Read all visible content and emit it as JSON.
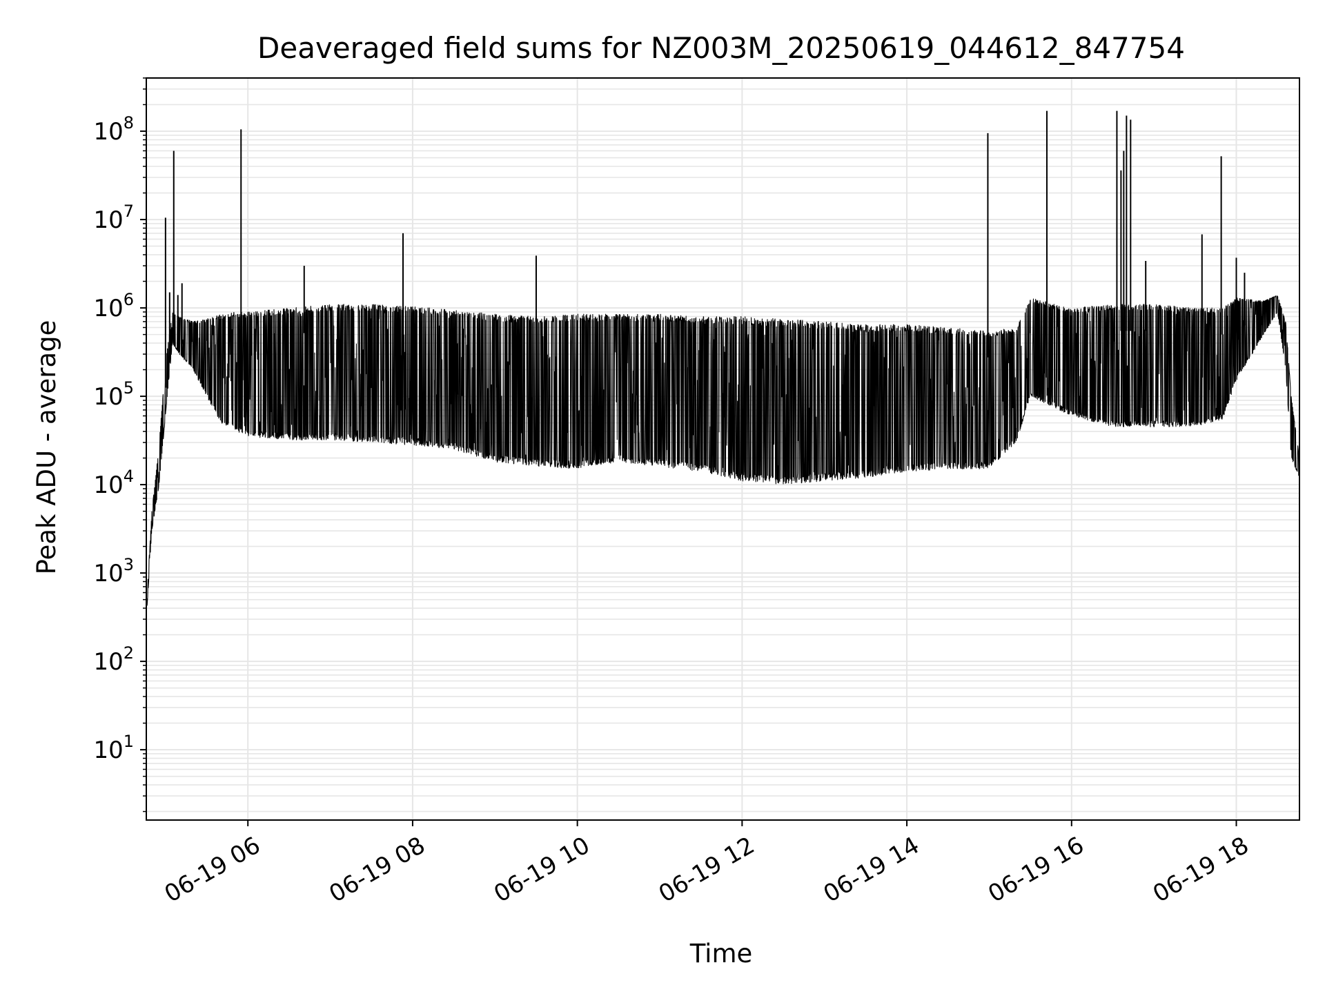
{
  "chart_data": {
    "type": "line",
    "title": "Deaveraged field sums for NZ003M_20250619_044612_847754",
    "xlabel": "Time",
    "ylabel": "Peak ADU - average",
    "y_scale": "log",
    "ylim": [
      1.6,
      400000000
    ],
    "xlim": [
      "06-19 04:46",
      "06-19 18:46"
    ],
    "grid": true,
    "line_color": "#000000",
    "grid_color": "#e6e6e6",
    "x_ticks": [
      {
        "value": "06-19 06:00",
        "label": "06-19 06"
      },
      {
        "value": "06-19 08:00",
        "label": "06-19 08"
      },
      {
        "value": "06-19 10:00",
        "label": "06-19 10"
      },
      {
        "value": "06-19 12:00",
        "label": "06-19 12"
      },
      {
        "value": "06-19 14:00",
        "label": "06-19 14"
      },
      {
        "value": "06-19 16:00",
        "label": "06-19 16"
      },
      {
        "value": "06-19 18:00",
        "label": "06-19 18"
      }
    ],
    "y_ticks": [
      {
        "value": 10,
        "base": "10",
        "exp": "1"
      },
      {
        "value": 100,
        "base": "10",
        "exp": "2"
      },
      {
        "value": 1000,
        "base": "10",
        "exp": "3"
      },
      {
        "value": 10000,
        "base": "10",
        "exp": "4"
      },
      {
        "value": 100000,
        "base": "10",
        "exp": "5"
      },
      {
        "value": 1000000,
        "base": "10",
        "exp": "6"
      },
      {
        "value": 10000000,
        "base": "10",
        "exp": "7"
      },
      {
        "value": 100000000,
        "base": "10",
        "exp": "8"
      }
    ],
    "envelope": {
      "x": [
        "06-19 04:46",
        "06-19 04:50",
        "06-19 04:55",
        "06-19 05:00",
        "06-19 05:05",
        "06-19 05:10",
        "06-19 05:20",
        "06-19 05:30",
        "06-19 05:40",
        "06-19 05:50",
        "06-19 06:00",
        "06-19 06:30",
        "06-19 07:00",
        "06-19 07:30",
        "06-19 08:00",
        "06-19 08:30",
        "06-19 09:00",
        "06-19 09:30",
        "06-19 10:00",
        "06-19 10:30",
        "06-19 11:00",
        "06-19 11:30",
        "06-19 12:00",
        "06-19 12:30",
        "06-19 13:00",
        "06-19 13:30",
        "06-19 14:00",
        "06-19 14:30",
        "06-19 15:00",
        "06-19 15:20",
        "06-19 15:30",
        "06-19 16:00",
        "06-19 16:30",
        "06-19 17:00",
        "06-19 17:30",
        "06-19 17:50",
        "06-19 18:00",
        "06-19 18:20",
        "06-19 18:30",
        "06-19 18:36",
        "06-19 18:40",
        "06-19 18:46"
      ],
      "low": [
        300,
        3000,
        9000,
        60000,
        400000,
        300000,
        200000,
        100000,
        50000,
        40000,
        35000,
        32000,
        32000,
        30000,
        28000,
        25000,
        18000,
        16000,
        15000,
        18000,
        16000,
        14000,
        11000,
        10000,
        11000,
        12000,
        14000,
        15000,
        15000,
        30000,
        100000,
        60000,
        45000,
        45000,
        45000,
        55000,
        150000,
        500000,
        900000,
        200000,
        20000,
        12000
      ],
      "high": [
        400,
        5000,
        25000,
        250000,
        900000,
        800000,
        700000,
        750000,
        850000,
        900000,
        900000,
        1000000,
        1100000,
        1100000,
        1050000,
        950000,
        850000,
        800000,
        850000,
        850000,
        850000,
        800000,
        800000,
        750000,
        700000,
        650000,
        650000,
        600000,
        550000,
        600000,
        1300000,
        1000000,
        1100000,
        1100000,
        1000000,
        1000000,
        1300000,
        1200000,
        1400000,
        700000,
        100000,
        20000
      ]
    },
    "spikes": [
      {
        "x": "06-19 05:00",
        "y": 10500000
      },
      {
        "x": "06-19 05:03",
        "y": 1500000
      },
      {
        "x": "06-19 05:06",
        "y": 60000000
      },
      {
        "x": "06-19 05:09",
        "y": 1400000
      },
      {
        "x": "06-19 05:12",
        "y": 1900000
      },
      {
        "x": "06-19 05:55",
        "y": 105000000
      },
      {
        "x": "06-19 06:41",
        "y": 3000000
      },
      {
        "x": "06-19 07:53",
        "y": 7000000
      },
      {
        "x": "06-19 09:30",
        "y": 3900000
      },
      {
        "x": "06-19 14:59",
        "y": 95000000
      },
      {
        "x": "06-19 15:42",
        "y": 170000000
      },
      {
        "x": "06-19 16:33",
        "y": 170000000
      },
      {
        "x": "06-19 16:36",
        "y": 36000000
      },
      {
        "x": "06-19 16:38",
        "y": 60000000
      },
      {
        "x": "06-19 16:40",
        "y": 150000000
      },
      {
        "x": "06-19 16:43",
        "y": 135000000
      },
      {
        "x": "06-19 16:54",
        "y": 3400000
      },
      {
        "x": "06-19 17:35",
        "y": 6800000
      },
      {
        "x": "06-19 17:49",
        "y": 52000000
      },
      {
        "x": "06-19 18:00",
        "y": 3700000
      },
      {
        "x": "06-19 18:06",
        "y": 2500000
      }
    ]
  }
}
